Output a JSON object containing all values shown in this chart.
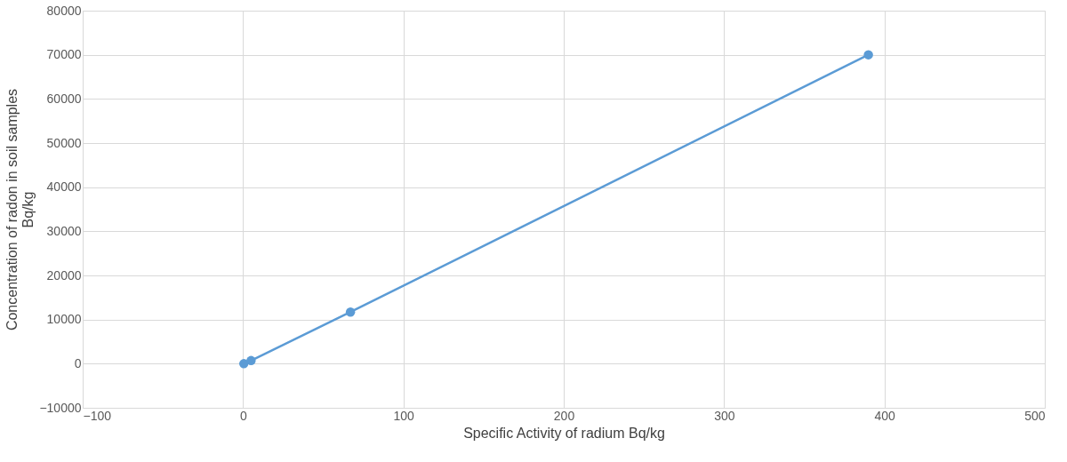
{
  "chart_data": {
    "type": "line",
    "xlabel": "Specific Activity of radium Bq/kg",
    "ylabel": "Concentration of radon in soil samples Bq/kg",
    "x": [
      0.5,
      5,
      67,
      390
    ],
    "series": [
      {
        "color": "#5b9bd5",
        "values": [
          0,
          700,
          11700,
          70000
        ]
      }
    ],
    "xlim": [
      -100,
      500
    ],
    "xticks": [
      -100,
      0,
      100,
      200,
      300,
      400,
      500
    ],
    "ylim": [
      -10000,
      80000
    ],
    "yticks": [
      -10000,
      0,
      10000,
      20000,
      30000,
      40000,
      50000,
      60000,
      70000,
      80000
    ],
    "grid": true,
    "marker": "circle",
    "line_style": "solid",
    "legend": false
  }
}
